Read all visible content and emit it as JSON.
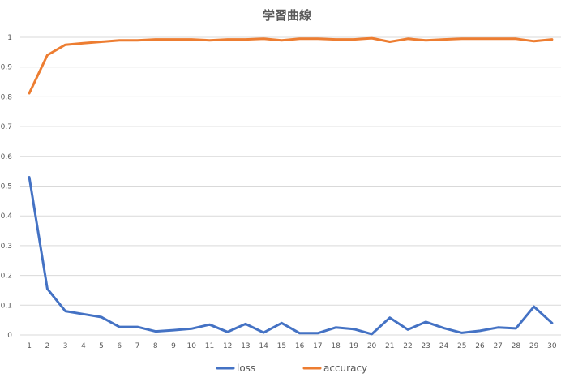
{
  "chart_data": {
    "type": "line",
    "title": "学習曲線",
    "xlabel": "",
    "ylabel": "",
    "ylim": [
      0,
      1
    ],
    "yticks": [
      "0",
      "0.1",
      "0.2",
      "0.3",
      "0.4",
      "0.5",
      "0.6",
      "0.7",
      "0.8",
      "0.9",
      "1"
    ],
    "categories": [
      "1",
      "2",
      "3",
      "4",
      "5",
      "6",
      "7",
      "8",
      "9",
      "10",
      "11",
      "12",
      "13",
      "14",
      "15",
      "16",
      "17",
      "18",
      "19",
      "20",
      "21",
      "22",
      "23",
      "24",
      "25",
      "26",
      "27",
      "28",
      "29",
      "30"
    ],
    "grid": true,
    "legend_position": "bottom",
    "series": [
      {
        "name": "loss",
        "color": "#4472c4",
        "values": [
          0.53,
          0.155,
          0.08,
          0.07,
          0.06,
          0.027,
          0.027,
          0.012,
          0.016,
          0.021,
          0.035,
          0.01,
          0.037,
          0.008,
          0.04,
          0.006,
          0.006,
          0.025,
          0.02,
          0.003,
          0.058,
          0.018,
          0.044,
          0.023,
          0.007,
          0.014,
          0.025,
          0.022,
          0.095,
          0.04
        ]
      },
      {
        "name": "accuracy",
        "color": "#ed7d31",
        "values": [
          0.812,
          0.94,
          0.975,
          0.98,
          0.985,
          0.99,
          0.99,
          0.993,
          0.993,
          0.993,
          0.99,
          0.993,
          0.993,
          0.995,
          0.99,
          0.995,
          0.995,
          0.993,
          0.993,
          0.997,
          0.985,
          0.995,
          0.99,
          0.993,
          0.995,
          0.995,
          0.995,
          0.995,
          0.987,
          0.993
        ]
      }
    ]
  }
}
